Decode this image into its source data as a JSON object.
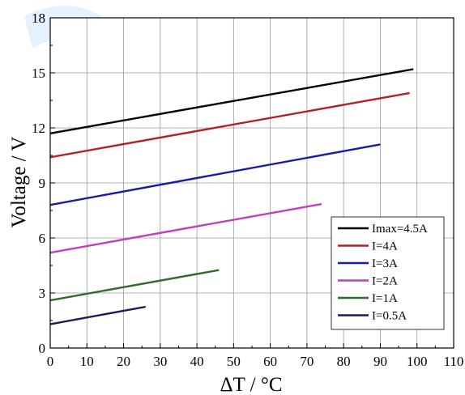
{
  "chart_data": {
    "type": "line",
    "xlabel": "ΔT / °C",
    "ylabel": "Voltage / V",
    "xlim": [
      0,
      110
    ],
    "ylim": [
      0,
      18
    ],
    "xticks": [
      0,
      10,
      20,
      30,
      40,
      50,
      60,
      70,
      80,
      90,
      100,
      110
    ],
    "yticks": [
      0,
      3,
      6,
      9,
      12,
      15,
      18
    ],
    "grid": true,
    "legend_position": "bottom-right",
    "series": [
      {
        "name": "Imax=4.5A",
        "color": "#000000",
        "x": [
          0,
          99
        ],
        "y": [
          11.7,
          15.2
        ]
      },
      {
        "name": "I=4A",
        "color": "#b22222",
        "x": [
          0,
          98
        ],
        "y": [
          10.4,
          13.9
        ]
      },
      {
        "name": "I=3A",
        "color": "#1a1aaa",
        "x": [
          0,
          90
        ],
        "y": [
          7.8,
          11.1
        ]
      },
      {
        "name": "I=2A",
        "color": "#bf40bf",
        "x": [
          0,
          74
        ],
        "y": [
          5.2,
          7.85
        ]
      },
      {
        "name": "I=1A",
        "color": "#2e6b2e",
        "x": [
          0,
          46
        ],
        "y": [
          2.6,
          4.25
        ]
      },
      {
        "name": "I=0.5A",
        "color": "#1b1b5e",
        "x": [
          0,
          26
        ],
        "y": [
          1.3,
          2.25
        ]
      }
    ]
  }
}
